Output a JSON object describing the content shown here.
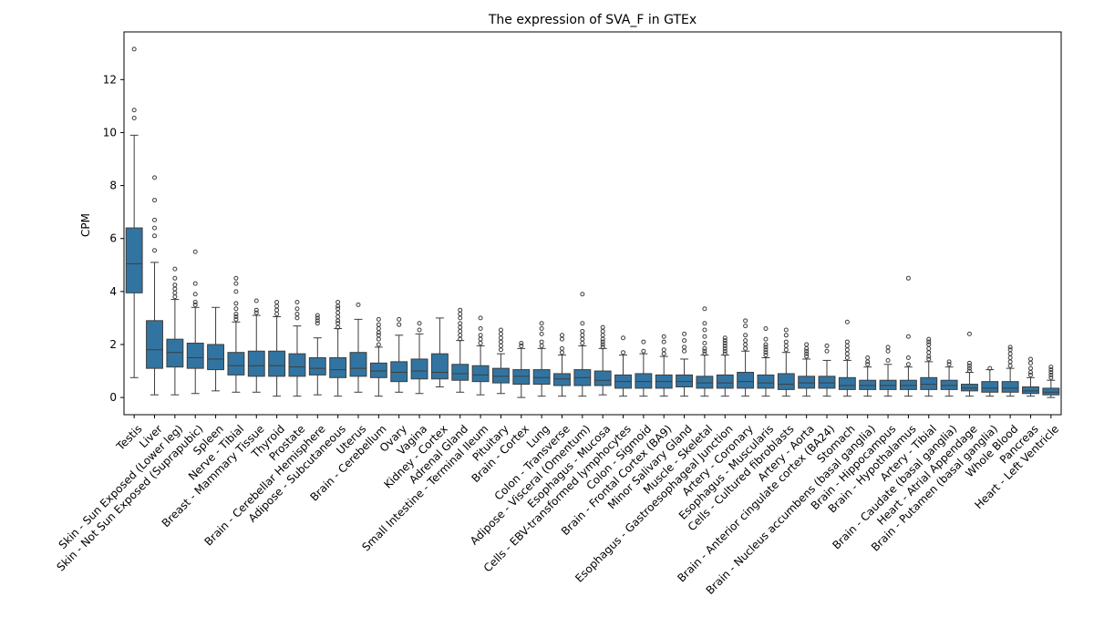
{
  "chart_data": {
    "type": "box",
    "title": "The expression of SVA_F in GTEx",
    "xlabel": "",
    "ylabel": "CPM",
    "ylim": [
      -0.65,
      13.8
    ],
    "yticks": [
      0,
      2,
      4,
      6,
      8,
      10,
      12
    ],
    "grid": false,
    "legend": "none",
    "box_color": "#3274a1",
    "categories": [
      {
        "name": "Testis",
        "q1": 3.95,
        "median": 5.05,
        "q3": 6.4,
        "lo": 0.75,
        "hi": 9.9,
        "outliers": [
          10.55,
          10.85,
          13.15
        ]
      },
      {
        "name": "Liver",
        "q1": 1.1,
        "median": 1.8,
        "q3": 2.9,
        "lo": 0.1,
        "hi": 5.1,
        "outliers": [
          5.55,
          6.1,
          6.4,
          6.7,
          7.45,
          8.3
        ]
      },
      {
        "name": "Skin - Sun Exposed (Lower leg)",
        "q1": 1.15,
        "median": 1.7,
        "q3": 2.2,
        "lo": 0.1,
        "hi": 3.7,
        "outliers": [
          3.8,
          3.95,
          4.1,
          4.25,
          4.5,
          4.85
        ]
      },
      {
        "name": "Skin - Not Sun Exposed (Suprapubic)",
        "q1": 1.1,
        "median": 1.5,
        "q3": 2.05,
        "lo": 0.15,
        "hi": 3.4,
        "outliers": [
          3.5,
          3.6,
          3.9,
          4.3,
          5.5
        ]
      },
      {
        "name": "Spleen",
        "q1": 1.05,
        "median": 1.45,
        "q3": 2.0,
        "lo": 0.25,
        "hi": 3.4,
        "outliers": []
      },
      {
        "name": "Nerve - Tibial",
        "q1": 0.85,
        "median": 1.2,
        "q3": 1.7,
        "lo": 0.2,
        "hi": 2.85,
        "outliers": [
          2.95,
          3.05,
          3.15,
          3.35,
          3.55,
          4.0,
          4.3,
          4.5
        ]
      },
      {
        "name": "Breast - Mammary Tissue",
        "q1": 0.8,
        "median": 1.2,
        "q3": 1.75,
        "lo": 0.2,
        "hi": 3.1,
        "outliers": [
          3.2,
          3.3,
          3.65
        ]
      },
      {
        "name": "Thyroid",
        "q1": 0.8,
        "median": 1.2,
        "q3": 1.75,
        "lo": 0.05,
        "hi": 3.05,
        "outliers": [
          3.15,
          3.3,
          3.45,
          3.6
        ]
      },
      {
        "name": "Prostate",
        "q1": 0.8,
        "median": 1.15,
        "q3": 1.65,
        "lo": 0.05,
        "hi": 2.7,
        "outliers": [
          3.0,
          3.15,
          3.35,
          3.6
        ]
      },
      {
        "name": "Brain - Cerebellar Hemisphere",
        "q1": 0.85,
        "median": 1.1,
        "q3": 1.5,
        "lo": 0.1,
        "hi": 2.25,
        "outliers": [
          2.8,
          2.9,
          3.0,
          3.1
        ]
      },
      {
        "name": "Adipose - Subcutaneous",
        "q1": 0.75,
        "median": 1.05,
        "q3": 1.5,
        "lo": 0.05,
        "hi": 2.6,
        "outliers": [
          2.65,
          2.8,
          2.9,
          3.05,
          3.2,
          3.35,
          3.45,
          3.6
        ]
      },
      {
        "name": "Uterus",
        "q1": 0.8,
        "median": 1.1,
        "q3": 1.7,
        "lo": 0.2,
        "hi": 2.95,
        "outliers": [
          3.5
        ]
      },
      {
        "name": "Brain - Cerebellum",
        "q1": 0.75,
        "median": 1.0,
        "q3": 1.3,
        "lo": 0.05,
        "hi": 1.9,
        "outliers": [
          2.0,
          2.2,
          2.35,
          2.45,
          2.6,
          2.75,
          2.95
        ]
      },
      {
        "name": "Ovary",
        "q1": 0.6,
        "median": 0.95,
        "q3": 1.35,
        "lo": 0.2,
        "hi": 2.35,
        "outliers": [
          2.75,
          2.95
        ]
      },
      {
        "name": "Vagina",
        "q1": 0.7,
        "median": 1.0,
        "q3": 1.45,
        "lo": 0.15,
        "hi": 2.4,
        "outliers": [
          2.55,
          2.8
        ]
      },
      {
        "name": "Kidney - Cortex",
        "q1": 0.7,
        "median": 0.95,
        "q3": 1.65,
        "lo": 0.4,
        "hi": 3.0,
        "outliers": []
      },
      {
        "name": "Adrenal Gland",
        "q1": 0.65,
        "median": 0.9,
        "q3": 1.25,
        "lo": 0.2,
        "hi": 2.15,
        "outliers": [
          2.2,
          2.35,
          2.5,
          2.65,
          2.8,
          3.0,
          3.15,
          3.3
        ]
      },
      {
        "name": "Small Intestine - Terminal Ileum",
        "q1": 0.6,
        "median": 0.85,
        "q3": 1.2,
        "lo": 0.1,
        "hi": 1.95,
        "outliers": [
          2.05,
          2.2,
          2.35,
          2.6,
          3.0
        ]
      },
      {
        "name": "Pituitary",
        "q1": 0.55,
        "median": 0.8,
        "q3": 1.1,
        "lo": 0.15,
        "hi": 1.65,
        "outliers": [
          1.8,
          1.95,
          2.1,
          2.25,
          2.4,
          2.55
        ]
      },
      {
        "name": "Brain - Cortex",
        "q1": 0.5,
        "median": 0.8,
        "q3": 1.05,
        "lo": 0.0,
        "hi": 1.85,
        "outliers": [
          1.95,
          2.05
        ]
      },
      {
        "name": "Lung",
        "q1": 0.5,
        "median": 0.75,
        "q3": 1.05,
        "lo": 0.05,
        "hi": 1.85,
        "outliers": [
          1.95,
          2.1,
          2.4,
          2.6,
          2.8
        ]
      },
      {
        "name": "Colon - Transverse",
        "q1": 0.45,
        "median": 0.7,
        "q3": 0.9,
        "lo": 0.05,
        "hi": 1.6,
        "outliers": [
          1.7,
          1.85,
          2.2,
          2.35
        ]
      },
      {
        "name": "Adipose - Visceral (Omentum)",
        "q1": 0.45,
        "median": 0.75,
        "q3": 1.05,
        "lo": 0.05,
        "hi": 1.95,
        "outliers": [
          2.05,
          2.2,
          2.35,
          2.5,
          2.8,
          3.9
        ]
      },
      {
        "name": "Esophagus - Mucosa",
        "q1": 0.45,
        "median": 0.65,
        "q3": 1.0,
        "lo": 0.1,
        "hi": 1.85,
        "outliers": [
          1.9,
          2.0,
          2.1,
          2.2,
          2.35,
          2.5,
          2.65
        ]
      },
      {
        "name": "Cells - EBV-transformed lymphocytes",
        "q1": 0.35,
        "median": 0.6,
        "q3": 0.85,
        "lo": 0.05,
        "hi": 1.6,
        "outliers": [
          1.7,
          2.25
        ]
      },
      {
        "name": "Colon - Sigmoid",
        "q1": 0.35,
        "median": 0.6,
        "q3": 0.9,
        "lo": 0.05,
        "hi": 1.65,
        "outliers": [
          1.75,
          2.1
        ]
      },
      {
        "name": "Brain - Frontal Cortex (BA9)",
        "q1": 0.35,
        "median": 0.6,
        "q3": 0.85,
        "lo": 0.05,
        "hi": 1.55,
        "outliers": [
          1.65,
          1.8,
          2.1,
          2.3
        ]
      },
      {
        "name": "Minor Salivary Gland",
        "q1": 0.4,
        "median": 0.6,
        "q3": 0.85,
        "lo": 0.05,
        "hi": 1.45,
        "outliers": [
          1.75,
          1.9,
          2.15,
          2.4
        ]
      },
      {
        "name": "Muscle - Skeletal",
        "q1": 0.35,
        "median": 0.55,
        "q3": 0.8,
        "lo": 0.05,
        "hi": 1.6,
        "outliers": [
          1.65,
          1.75,
          1.85,
          2.05,
          2.3,
          2.55,
          2.8,
          3.35
        ]
      },
      {
        "name": "Esophagus - Gastroesophageal Junction",
        "q1": 0.35,
        "median": 0.55,
        "q3": 0.85,
        "lo": 0.05,
        "hi": 1.6,
        "outliers": [
          1.65,
          1.75,
          1.85,
          1.95,
          2.05,
          2.15,
          2.25
        ]
      },
      {
        "name": "Artery - Coronary",
        "q1": 0.35,
        "median": 0.6,
        "q3": 0.95,
        "lo": 0.05,
        "hi": 1.75,
        "outliers": [
          1.85,
          2.0,
          2.15,
          2.35,
          2.7,
          2.9
        ]
      },
      {
        "name": "Esophagus - Muscularis",
        "q1": 0.35,
        "median": 0.55,
        "q3": 0.85,
        "lo": 0.05,
        "hi": 1.5,
        "outliers": [
          1.6,
          1.7,
          1.8,
          1.9,
          2.0,
          2.2,
          2.6
        ]
      },
      {
        "name": "Cells - Cultured fibroblasts",
        "q1": 0.3,
        "median": 0.5,
        "q3": 0.9,
        "lo": 0.05,
        "hi": 1.7,
        "outliers": [
          1.8,
          1.95,
          2.1,
          2.35,
          2.55
        ]
      },
      {
        "name": "Artery - Aorta",
        "q1": 0.35,
        "median": 0.55,
        "q3": 0.8,
        "lo": 0.05,
        "hi": 1.45,
        "outliers": [
          1.55,
          1.65,
          1.75,
          1.85,
          2.0
        ]
      },
      {
        "name": "Brain - Anterior cingulate cortex (BA24)",
        "q1": 0.35,
        "median": 0.55,
        "q3": 0.8,
        "lo": 0.05,
        "hi": 1.4,
        "outliers": [
          1.75,
          1.95
        ]
      },
      {
        "name": "Stomach",
        "q1": 0.3,
        "median": 0.45,
        "q3": 0.75,
        "lo": 0.05,
        "hi": 1.4,
        "outliers": [
          1.5,
          1.65,
          1.8,
          1.95,
          2.1,
          2.85
        ]
      },
      {
        "name": "Brain - Nucleus accumbens (basal ganglia)",
        "q1": 0.3,
        "median": 0.45,
        "q3": 0.65,
        "lo": 0.05,
        "hi": 1.15,
        "outliers": [
          1.25,
          1.35,
          1.5
        ]
      },
      {
        "name": "Brain - Hippocampus",
        "q1": 0.3,
        "median": 0.45,
        "q3": 0.65,
        "lo": 0.05,
        "hi": 1.25,
        "outliers": [
          1.4,
          1.75,
          1.9
        ]
      },
      {
        "name": "Brain - Hypothalamus",
        "q1": 0.3,
        "median": 0.45,
        "q3": 0.65,
        "lo": 0.05,
        "hi": 1.15,
        "outliers": [
          1.25,
          1.5,
          2.3,
          4.5
        ]
      },
      {
        "name": "Artery - Tibial",
        "q1": 0.3,
        "median": 0.5,
        "q3": 0.75,
        "lo": 0.05,
        "hi": 1.35,
        "outliers": [
          1.45,
          1.55,
          1.7,
          1.85,
          2.0,
          2.1,
          2.2
        ]
      },
      {
        "name": "Brain - Caudate (basal ganglia)",
        "q1": 0.3,
        "median": 0.45,
        "q3": 0.65,
        "lo": 0.05,
        "hi": 1.15,
        "outliers": [
          1.25,
          1.35
        ]
      },
      {
        "name": "Heart - Atrial Appendage",
        "q1": 0.25,
        "median": 0.35,
        "q3": 0.5,
        "lo": 0.05,
        "hi": 0.95,
        "outliers": [
          1.0,
          1.1,
          1.2,
          1.3,
          2.4
        ]
      },
      {
        "name": "Brain - Putamen (basal ganglia)",
        "q1": 0.2,
        "median": 0.35,
        "q3": 0.6,
        "lo": 0.05,
        "hi": 1.05,
        "outliers": [
          1.1
        ]
      },
      {
        "name": "Whole Blood",
        "q1": 0.2,
        "median": 0.35,
        "q3": 0.6,
        "lo": 0.05,
        "hi": 1.1,
        "outliers": [
          1.2,
          1.35,
          1.5,
          1.65,
          1.8,
          1.9
        ]
      },
      {
        "name": "Pancreas",
        "q1": 0.15,
        "median": 0.25,
        "q3": 0.4,
        "lo": 0.05,
        "hi": 0.75,
        "outliers": [
          0.85,
          0.95,
          1.1,
          1.3,
          1.45
        ]
      },
      {
        "name": "Heart - Left Ventricle",
        "q1": 0.1,
        "median": 0.2,
        "q3": 0.35,
        "lo": 0.0,
        "hi": 0.65,
        "outliers": [
          0.75,
          0.85,
          0.95,
          1.05,
          1.15
        ]
      }
    ]
  }
}
